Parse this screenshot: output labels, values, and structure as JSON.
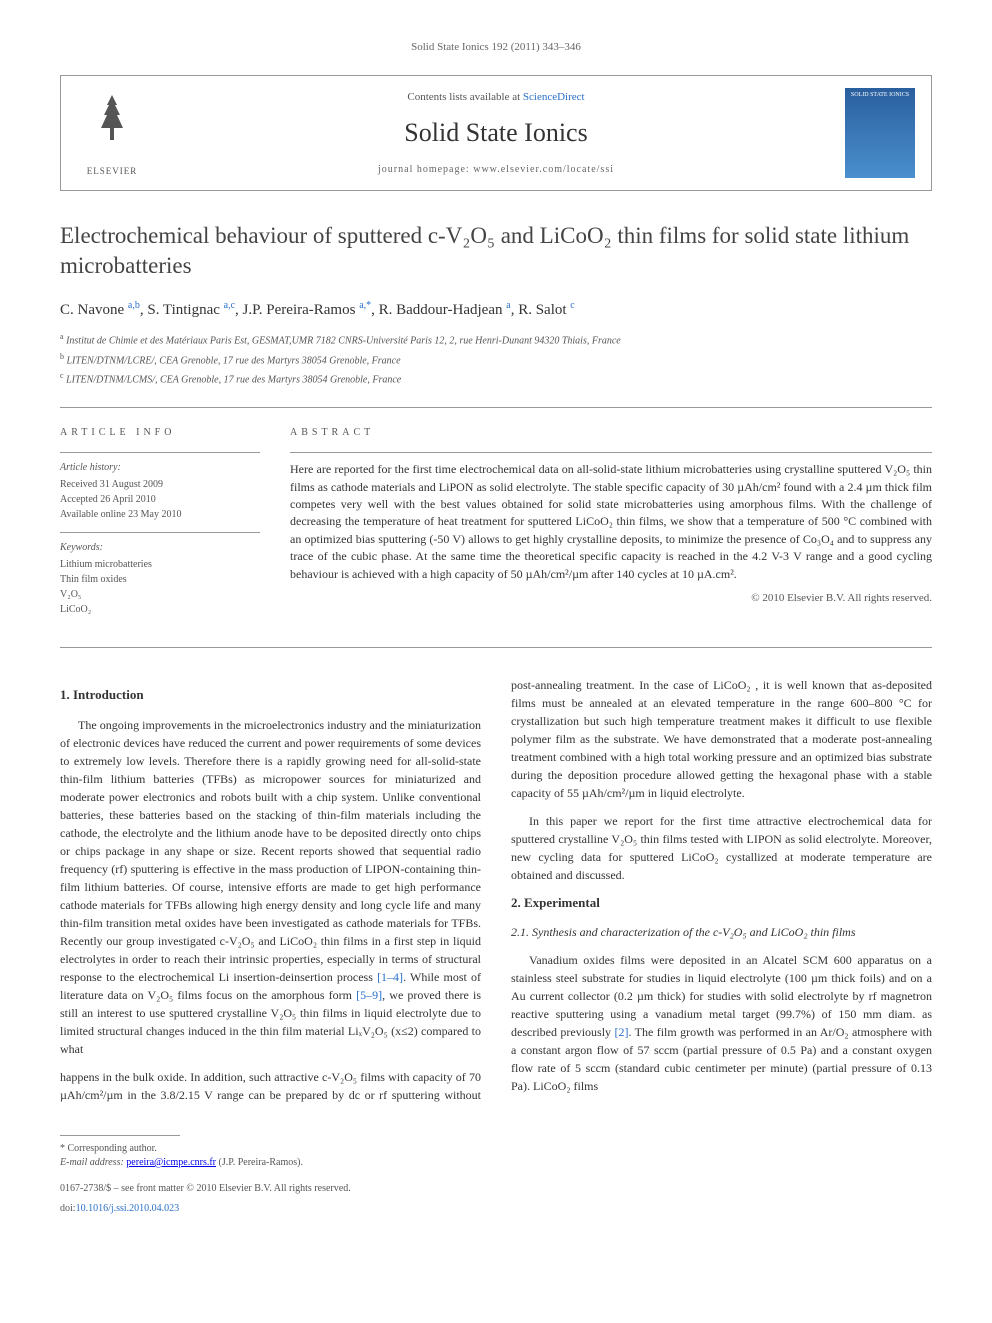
{
  "header": {
    "citation": "Solid State Ionics 192 (2011) 343–346",
    "contents_prefix": "Contents lists available at ",
    "contents_link": "ScienceDirect",
    "journal_name": "Solid State Ionics",
    "homepage_prefix": "journal homepage: ",
    "homepage_url": "www.elsevier.com/locate/ssi",
    "elsevier_label": "ELSEVIER",
    "cover_label": "SOLID STATE IONICS"
  },
  "article": {
    "title": "Electrochemical behaviour of sputtered c-V₂O₅ and LiCoO₂ thin films for solid state lithium microbatteries",
    "authors_html": "C. Navone <sup>a,b</sup>, S. Tintignac <sup>a,c</sup>, J.P. Pereira-Ramos <sup>a,*</sup>, R. Baddour-Hadjean <sup>a</sup>, R. Salot <sup>c</sup>",
    "affiliations": [
      {
        "sup": "a",
        "text": "Institut de Chimie et des Matériaux Paris Est, GESMAT,UMR 7182 CNRS-Université Paris 12, 2, rue Henri-Dunant 94320 Thiais, France"
      },
      {
        "sup": "b",
        "text": "LITEN/DTNM/LCRE/, CEA Grenoble, 17 rue des Martyrs 38054 Grenoble, France"
      },
      {
        "sup": "c",
        "text": "LITEN/DTNM/LCMS/, CEA Grenoble, 17 rue des Martyrs 38054 Grenoble, France"
      }
    ]
  },
  "info": {
    "header": "ARTICLE INFO",
    "history_label": "Article history:",
    "history": "Received 31 August 2009\nAccepted 26 April 2010\nAvailable online 23 May 2010",
    "keywords_label": "Keywords:",
    "keywords": "Lithium microbatteries\nThin film oxides\nV₂O₅\nLiCoO₂"
  },
  "abstract": {
    "header": "ABSTRACT",
    "text": "Here are reported for the first time electrochemical data on all-solid-state lithium microbatteries using crystalline sputtered V₂O₅ thin films as cathode materials and LiPON as solid electrolyte. The stable specific capacity of 30 µAh/cm² found with a 2.4 µm thick film competes very well with the best values obtained for solid state microbatteries using amorphous films. With the challenge of decreasing the temperature of heat treatment for sputtered LiCoO₂ thin films, we show that a temperature of 500 °C combined with an optimized bias sputtering (-50 V) allows to get highly crystalline deposits, to minimize the presence of Co₃O₄ and to suppress any trace of the cubic phase. At the same time the theoretical specific capacity is reached in the 4.2 V-3 V range and a good cycling behaviour is achieved with a high capacity of 50 µAh/cm²/µm after 140 cycles at 10 µA.cm².",
    "copyright": "© 2010 Elsevier B.V. All rights reserved."
  },
  "body": {
    "section1_heading": "1. Introduction",
    "section1_p1": "The ongoing improvements in the microelectronics industry and the miniaturization of electronic devices have reduced the current and power requirements of some devices to extremely low levels. Therefore there is a rapidly growing need for all-solid-state thin-film lithium batteries (TFBs) as micropower sources for miniaturized and moderate power electronics and robots built with a chip system. Unlike conventional batteries, these batteries based on the stacking of thin-film materials including the cathode, the electrolyte and the lithium anode have to be deposited directly onto chips or chips package in any shape or size. Recent reports showed that sequential radio frequency (rf) sputtering is effective in the mass production of LIPON-containing thin-film lithium batteries. Of course, intensive efforts are made to get high performance cathode materials for TFBs allowing high energy density and long cycle life and many thin-film transition metal oxides have been investigated as cathode materials for TFBs. Recently our group investigated c-V₂O₅ and LiCoO₂ thin films in a first step in liquid electrolytes in order to reach their intrinsic properties, especially in terms of structural response to the electrochemical Li insertion-deinsertion process ",
    "section1_p1_ref": "[1–4]",
    "section1_p1_cont": ". While most of literature data on V₂O₅ films focus on the amorphous form ",
    "section1_p1_ref2": "[5–9]",
    "section1_p1_cont2": ", we proved there is still an interest to use sputtered crystalline V₂O₅ thin films in liquid electrolyte due to limited structural changes induced in the thin film material LiₓV₂O₅ (x≤2) compared to what",
    "section1_p2": "happens in the bulk oxide. In addition, such attractive c-V₂O₅ films with capacity of 70 µAh/cm²/µm in the 3.8/2.15 V range can be prepared by dc or rf sputtering without post-annealing treatment. In the case of LiCoO₂ , it is well known that as-deposited films must be annealed at an elevated temperature in the range 600–800 °C for crystallization but such high temperature treatment makes it difficult to use flexible polymer film as the substrate. We have demonstrated that a moderate post-annealing treatment combined with a high total working pressure and an optimized bias substrate during the deposition procedure allowed getting the hexagonal phase with a stable capacity of 55 µAh/cm²/µm in liquid electrolyte.",
    "section1_p3": "In this paper we report for the first time attractive electrochemical data for sputtered crystalline V₂O₅ thin films tested with LIPON as solid electrolyte. Moreover, new cycling data for sputtered LiCoO₂ cystallized at moderate temperature are obtained and discussed.",
    "section2_heading": "2. Experimental",
    "section2_1_heading": "2.1. Synthesis and characterization of the c-V₂O₅ and LiCoO₂ thin films",
    "section2_p1": "Vanadium oxides films were deposited in an Alcatel SCM 600 apparatus on a stainless steel substrate for studies in liquid electrolyte (100 µm thick foils) and on a Au current collector (0.2 µm thick) for studies with solid electrolyte by rf magnetron reactive sputtering using a vanadium metal target (99.7%) of 150 mm diam. as described previously ",
    "section2_p1_ref": "[2]",
    "section2_p1_cont": ". The film growth was performed in an Ar/O₂ atmosphere with a constant argon flow of 57 sccm (partial pressure of 0.5 Pa) and a constant oxygen flow rate of 5 sccm (standard cubic centimeter per minute) (partial pressure of 0.13 Pa). LiCoO₂ films"
  },
  "footer": {
    "corresponding_label": "* Corresponding author.",
    "email_label": "E-mail address: ",
    "email": "pereira@icmpe.cnrs.fr",
    "email_suffix": " (J.P. Pereira-Ramos).",
    "copyright_line": "0167-2738/$ – see front matter © 2010 Elsevier B.V. All rights reserved.",
    "doi_prefix": "doi:",
    "doi": "10.1016/j.ssi.2010.04.023"
  },
  "colors": {
    "link": "#2a6fc9",
    "text": "#333333",
    "muted": "#666666",
    "border": "#999999",
    "cover_bg1": "#2a5f9e",
    "cover_bg2": "#4a8fce"
  }
}
